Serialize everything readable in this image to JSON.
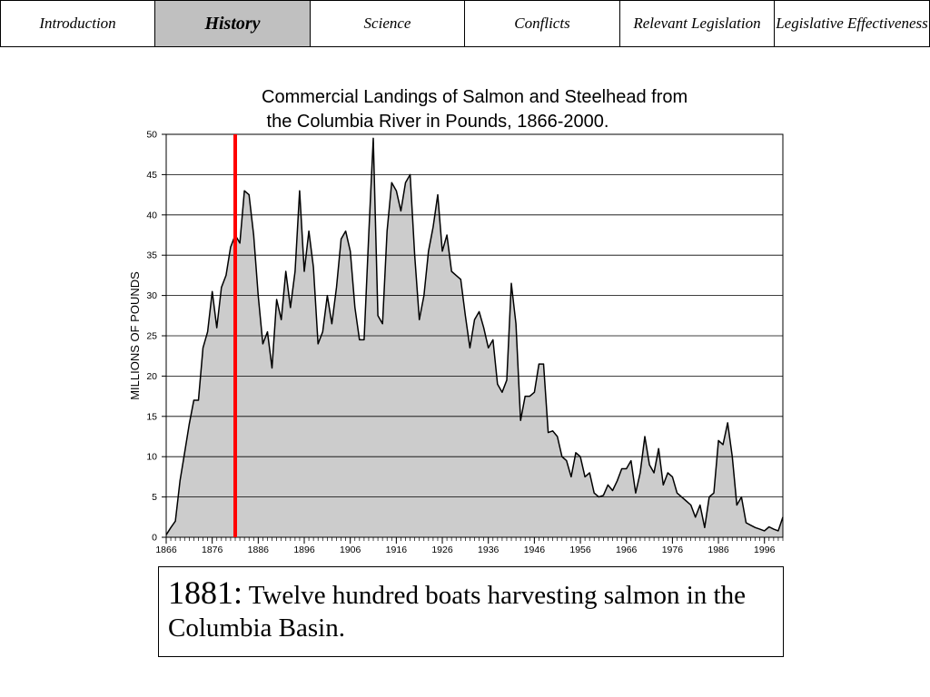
{
  "nav": {
    "tabs": [
      {
        "label": "Introduction",
        "active": false
      },
      {
        "label": "History",
        "active": true
      },
      {
        "label": "Science",
        "active": false
      },
      {
        "label": "Conflicts",
        "active": false
      },
      {
        "label": "Relevant Legislation",
        "active": false
      },
      {
        "label": "Legislative Effectiveness",
        "active": false
      }
    ]
  },
  "chart_data": {
    "type": "area",
    "title": "Commercial Landings of Salmon and Steelhead from\n the Columbia River in Pounds, 1866-2000.",
    "ylabel": "MILLIONS OF POUNDS",
    "xlabel": "",
    "xlim": [
      1866,
      2000
    ],
    "ylim": [
      0,
      50
    ],
    "yticks": [
      "0",
      "5",
      "10",
      "15",
      "20",
      "25",
      "30",
      "35",
      "40",
      "45",
      "50"
    ],
    "xticks": [
      "1866",
      "1876",
      "1886",
      "1896",
      "1906",
      "1916",
      "1926",
      "1936",
      "1946",
      "1956",
      "1966",
      "1976",
      "1986",
      "1996"
    ],
    "grid": true,
    "fill_color": "#cccccc",
    "line_color": "#000000",
    "marker": {
      "year": 1881,
      "color": "#ff0000"
    },
    "series": [
      {
        "x": [
          1866,
          1867,
          1868,
          1869,
          1870,
          1871,
          1872,
          1873,
          1874,
          1875,
          1876,
          1877,
          1878,
          1879,
          1880,
          1881,
          1882,
          1883,
          1884,
          1885,
          1886,
          1887,
          1888,
          1889,
          1890,
          1891,
          1892,
          1893,
          1894,
          1895,
          1896,
          1897,
          1898,
          1899,
          1900,
          1901,
          1902,
          1903,
          1904,
          1905,
          1906,
          1907,
          1908,
          1909,
          1910,
          1911,
          1912,
          1913,
          1914,
          1915,
          1916,
          1917,
          1918,
          1919,
          1920,
          1921,
          1922,
          1923,
          1924,
          1925,
          1926,
          1927,
          1928,
          1929,
          1930,
          1931,
          1932,
          1933,
          1934,
          1935,
          1936,
          1937,
          1938,
          1939,
          1940,
          1941,
          1942,
          1943,
          1944,
          1945,
          1946,
          1947,
          1948,
          1949,
          1950,
          1951,
          1952,
          1953,
          1954,
          1955,
          1956,
          1957,
          1958,
          1959,
          1960,
          1961,
          1962,
          1963,
          1964,
          1965,
          1966,
          1967,
          1968,
          1969,
          1970,
          1971,
          1972,
          1973,
          1974,
          1975,
          1976,
          1977,
          1978,
          1979,
          1980,
          1981,
          1982,
          1983,
          1984,
          1985,
          1986,
          1987,
          1988,
          1989,
          1990,
          1991,
          1992,
          1993,
          1994,
          1995,
          1996,
          1997,
          1998,
          1999,
          2000
        ],
        "values": [
          0.3,
          1.2,
          2.0,
          7.0,
          10.5,
          14.0,
          17.0,
          17.0,
          23.5,
          25.5,
          30.5,
          26.0,
          31.0,
          32.5,
          36.0,
          37.5,
          36.5,
          43.0,
          42.5,
          37.5,
          30.0,
          24.0,
          25.5,
          21.0,
          29.5,
          27.0,
          33.0,
          28.5,
          33.0,
          43.0,
          33.0,
          38.0,
          33.5,
          24.0,
          25.5,
          30.0,
          26.5,
          31.0,
          37.0,
          38.0,
          35.5,
          28.5,
          24.5,
          24.5,
          37.5,
          49.5,
          27.5,
          26.5,
          38.0,
          44.0,
          43.0,
          40.5,
          44.0,
          45.0,
          35.0,
          27.0,
          30.0,
          35.5,
          38.5,
          42.5,
          35.5,
          37.5,
          33.0,
          32.5,
          32.0,
          27.5,
          23.5,
          27.0,
          28.0,
          26.0,
          23.5,
          24.5,
          19.0,
          18.0,
          19.5,
          31.5,
          26.5,
          14.5,
          17.5,
          17.5,
          18.0,
          21.5,
          21.5,
          13.0,
          13.2,
          12.5,
          10.0,
          9.5,
          7.5,
          10.5,
          10.0,
          7.5,
          8.0,
          5.5,
          5.0,
          5.2,
          6.5,
          5.8,
          7.0,
          8.5,
          8.5,
          9.5,
          5.5,
          8.0,
          12.5,
          9.0,
          8.0,
          11.0,
          6.5,
          8.0,
          7.5,
          5.5,
          5.0,
          4.5,
          4.0,
          2.5,
          4.0,
          1.2,
          5.0,
          5.5,
          12.0,
          11.5,
          14.2,
          10.0,
          4.0,
          5.0,
          1.8,
          1.5,
          1.2,
          1.0,
          0.8,
          1.3,
          1.0,
          0.8,
          2.5
        ]
      }
    ]
  },
  "caption": {
    "year": "1881:",
    "text": " Twelve hundred boats harvesting salmon in the Columbia Basin."
  }
}
